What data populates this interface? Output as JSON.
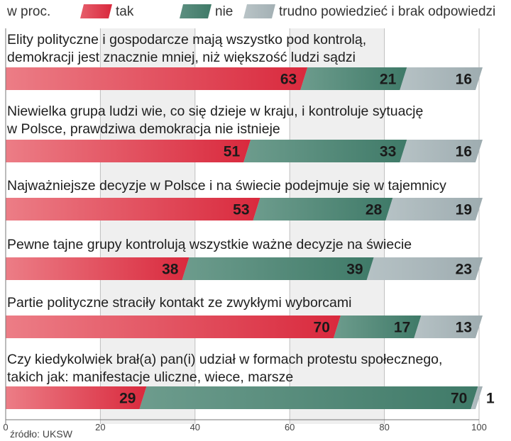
{
  "chart_data": {
    "type": "bar",
    "orientation": "horizontal",
    "stacked": true,
    "unit_label": "w proc.",
    "legend": [
      "tak",
      "nie",
      "trudno powiedzieć i brak odpowiedzi"
    ],
    "legend_position": "top",
    "xlim": [
      0,
      100
    ],
    "xticks": [
      0,
      20,
      40,
      60,
      80,
      100
    ],
    "grid": true,
    "colors": {
      "tak": "#d9293d",
      "nie": "#3f7a68",
      "trudno": "#a9b6ba"
    },
    "categories": [
      [
        "Elity polityczne i gospodarcze mają wszystko pod kontrolą,",
        "demokracji jest znacznie mniej, niż większość ludzi sądzi"
      ],
      [
        "Niewielka grupa ludzi wie, co się dzieje w kraju, i kontroluje sytuację",
        "w Polsce, prawdziwa demokracja nie istnieje"
      ],
      [
        "Najważniejsze decyzje w Polsce i na świecie podejmuje się w tajemnicy"
      ],
      [
        "Pewne tajne grupy kontrolują wszystkie ważne decyzje na świecie"
      ],
      [
        "Partie polityczne straciły kontakt ze zwykłymi wyborcami"
      ],
      [
        "Czy kiedykolwiek brał(a) pan(i) udział w formach protestu społecznego,",
        "takich jak: manifestacje uliczne, wiece, marsze"
      ]
    ],
    "series": [
      {
        "name": "tak",
        "values": [
          63,
          51,
          53,
          38,
          70,
          29
        ]
      },
      {
        "name": "nie",
        "values": [
          21,
          33,
          28,
          39,
          17,
          70
        ]
      },
      {
        "name": "trudno powiedzieć i brak odpowiedzi",
        "values": [
          16,
          16,
          19,
          23,
          13,
          1
        ]
      }
    ]
  },
  "source": "źródło: UKSW"
}
